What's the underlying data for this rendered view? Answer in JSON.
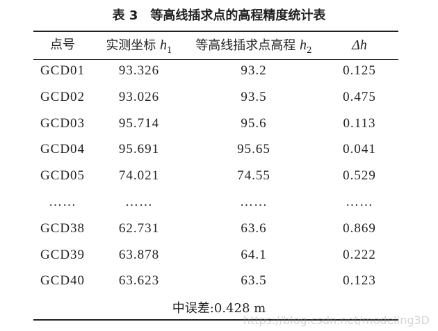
{
  "title": "表 3　等高线插求点的高程精度统计表",
  "table": {
    "headers": [
      {
        "label": "点号"
      },
      {
        "label": "实测坐标 ",
        "symbol": "h",
        "subscript": "1"
      },
      {
        "label": "等高线插求点高程 ",
        "symbol": "h",
        "subscript": "2"
      },
      {
        "symbol": "Δh"
      }
    ],
    "rows": [
      [
        "GCD01",
        "93.326",
        "93.2",
        "0.125"
      ],
      [
        "GCD02",
        "93.026",
        "93.5",
        "0.475"
      ],
      [
        "GCD03",
        "95.714",
        "95.6",
        "0.113"
      ],
      [
        "GCD04",
        "95.691",
        "95.65",
        "0.041"
      ],
      [
        "GCD05",
        "74.021",
        "74.55",
        "0.529"
      ],
      [
        "……",
        "……",
        "……",
        "……"
      ],
      [
        "GCD38",
        "62.731",
        "63.6",
        "0.869"
      ],
      [
        "GCD39",
        "63.878",
        "64.1",
        "0.222"
      ],
      [
        "GCD40",
        "63.623",
        "63.5",
        "0.123"
      ]
    ],
    "footer": "中误差:0.428 m"
  },
  "watermark": "https://blog.csdn.net/modeling3D"
}
